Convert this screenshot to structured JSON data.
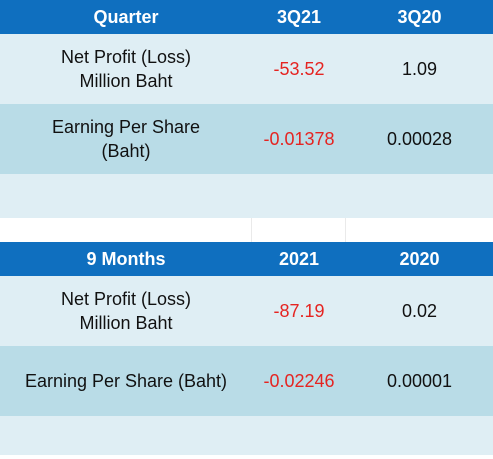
{
  "quarter_table": {
    "headers": [
      "Quarter",
      "3Q21",
      "3Q20"
    ],
    "rows": [
      {
        "label_line1": "Net Profit (Loss)",
        "label_line2": "Million Baht",
        "current": "-53.52",
        "previous": "1.09"
      },
      {
        "label_line1": "Earning Per Share",
        "label_line2": "(Baht)",
        "current": "-0.01378",
        "previous": "0.00028"
      }
    ]
  },
  "nine_month_table": {
    "headers": [
      "9 Months",
      "2021",
      "2020"
    ],
    "rows": [
      {
        "label_line1": "Net Profit (Loss)",
        "label_line2": "Million Baht",
        "current": "-87.19",
        "previous": "0.02"
      },
      {
        "label": "Earning Per Share (Baht)",
        "current": "-0.02246",
        "previous": "0.00001"
      }
    ]
  },
  "colors": {
    "header_bg": "#0f6fbf",
    "row_light": "#dfeef4",
    "row_mid": "#b9dce7",
    "negative": "#e52421"
  }
}
